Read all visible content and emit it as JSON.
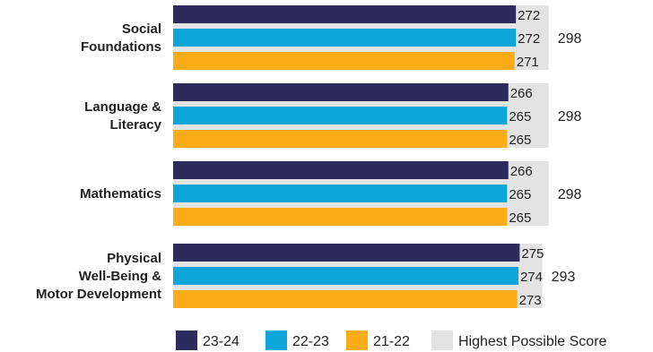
{
  "chart_data": {
    "type": "bar",
    "orientation": "horizontal",
    "categories": [
      [
        "Social",
        "Foundations"
      ],
      [
        "Language &",
        "Literacy"
      ],
      [
        "Mathematics"
      ],
      [
        "Physical",
        "Well-Being &",
        "Motor Development"
      ]
    ],
    "series": [
      {
        "name": "23-24",
        "color": "#2e2a5e",
        "values": [
          272,
          266,
          266,
          275
        ]
      },
      {
        "name": "22-23",
        "color": "#0ea6d9",
        "values": [
          272,
          265,
          265,
          274
        ]
      },
      {
        "name": "21-22",
        "color": "#fbad18",
        "values": [
          271,
          265,
          265,
          273
        ]
      }
    ],
    "highest_possible": {
      "name": "Highest Possible Score",
      "color": "#e3e3e3",
      "values": [
        298,
        298,
        298,
        293
      ]
    },
    "legend_placement": "bottom",
    "grid": false
  }
}
